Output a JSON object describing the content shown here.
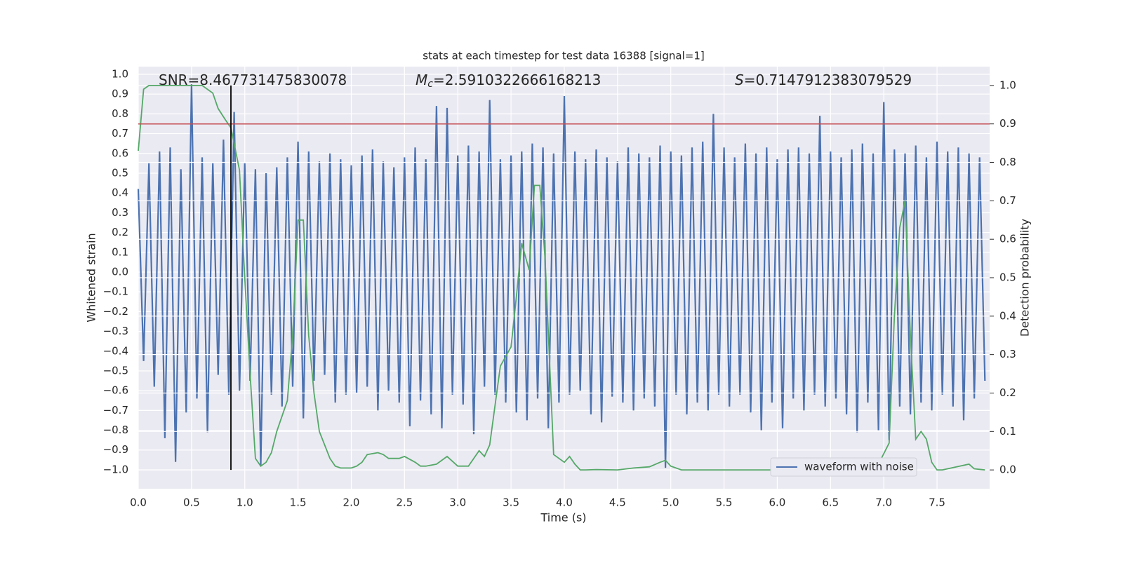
{
  "chart_data": {
    "type": "line",
    "title": "stats at each timestep for test data 16388 [signal=1]",
    "xlabel": "Time (s)",
    "ylabel": "Whitened strain",
    "y2label": "Detection probability",
    "xlim": [
      0,
      7.994
    ],
    "ylim": [
      -1.096,
      1.039
    ],
    "y2lim": [
      -0.049,
      1.049
    ],
    "xticks": [
      {
        "value": 0,
        "label": "0.0"
      },
      {
        "value": 0.5,
        "label": "0.5"
      },
      {
        "value": 1,
        "label": "1.0"
      },
      {
        "value": 1.5,
        "label": "1.5"
      },
      {
        "value": 2,
        "label": "2.0"
      },
      {
        "value": 2.5,
        "label": "2.5"
      },
      {
        "value": 3,
        "label": "3.0"
      },
      {
        "value": 3.5,
        "label": "3.5"
      },
      {
        "value": 4,
        "label": "4.0"
      },
      {
        "value": 4.5,
        "label": "4.5"
      },
      {
        "value": 5,
        "label": "5.0"
      },
      {
        "value": 5.5,
        "label": "5.5"
      },
      {
        "value": 6,
        "label": "6.0"
      },
      {
        "value": 6.5,
        "label": "6.5"
      },
      {
        "value": 7,
        "label": "7.0"
      },
      {
        "value": 7.5,
        "label": "7.5"
      }
    ],
    "yticks": [
      {
        "value": -1,
        "label": "−1.0"
      },
      {
        "value": -0.9,
        "label": "−0.9"
      },
      {
        "value": -0.8,
        "label": "−0.8"
      },
      {
        "value": -0.7,
        "label": "−0.7"
      },
      {
        "value": -0.6,
        "label": "−0.6"
      },
      {
        "value": -0.5,
        "label": "−0.5"
      },
      {
        "value": -0.4,
        "label": "−0.4"
      },
      {
        "value": -0.3,
        "label": "−0.3"
      },
      {
        "value": -0.2,
        "label": "−0.2"
      },
      {
        "value": -0.1,
        "label": "−0.1"
      },
      {
        "value": 0,
        "label": "0.0"
      },
      {
        "value": 0.1,
        "label": "0.1"
      },
      {
        "value": 0.2,
        "label": "0.2"
      },
      {
        "value": 0.3,
        "label": "0.3"
      },
      {
        "value": 0.4,
        "label": "0.4"
      },
      {
        "value": 0.5,
        "label": "0.5"
      },
      {
        "value": 0.6,
        "label": "0.6"
      },
      {
        "value": 0.7,
        "label": "0.7"
      },
      {
        "value": 0.8,
        "label": "0.8"
      },
      {
        "value": 0.9,
        "label": "0.9"
      },
      {
        "value": 1,
        "label": "1.0"
      }
    ],
    "y2ticks": [
      {
        "value": 0,
        "label": "0.0"
      },
      {
        "value": 0.1,
        "label": "0.1"
      },
      {
        "value": 0.2,
        "label": "0.2"
      },
      {
        "value": 0.3,
        "label": "0.3"
      },
      {
        "value": 0.4,
        "label": "0.4"
      },
      {
        "value": 0.5,
        "label": "0.5"
      },
      {
        "value": 0.6,
        "label": "0.6"
      },
      {
        "value": 0.7,
        "label": "0.7"
      },
      {
        "value": 0.8,
        "label": "0.8"
      },
      {
        "value": 0.9,
        "label": "0.9"
      },
      {
        "value": 1,
        "label": "1.0"
      }
    ],
    "grid": true,
    "legend": "lower right",
    "series": [
      {
        "name": "waveform with noise",
        "color": "#4c72b0",
        "axis": "y",
        "x": [
          0,
          0.05,
          0.1,
          0.15,
          0.2,
          0.25,
          0.3,
          0.35,
          0.4,
          0.45,
          0.5,
          0.55,
          0.6,
          0.65,
          0.7,
          0.75,
          0.8,
          0.85,
          0.9,
          0.95,
          1,
          1.05,
          1.1,
          1.15,
          1.2,
          1.25,
          1.3,
          1.35,
          1.4,
          1.45,
          1.5,
          1.55,
          1.6,
          1.65,
          1.7,
          1.75,
          1.8,
          1.85,
          1.9,
          1.95,
          2,
          2.05,
          2.1,
          2.15,
          2.2,
          2.25,
          2.3,
          2.35,
          2.4,
          2.45,
          2.5,
          2.55,
          2.6,
          2.65,
          2.7,
          2.75,
          2.8,
          2.85,
          2.9,
          2.95,
          3,
          3.05,
          3.1,
          3.15,
          3.2,
          3.25,
          3.3,
          3.35,
          3.4,
          3.45,
          3.5,
          3.55,
          3.6,
          3.65,
          3.7,
          3.75,
          3.8,
          3.85,
          3.9,
          3.95,
          4,
          4.05,
          4.1,
          4.15,
          4.2,
          4.25,
          4.3,
          4.35,
          4.4,
          4.45,
          4.5,
          4.55,
          4.6,
          4.65,
          4.7,
          4.75,
          4.8,
          4.85,
          4.9,
          4.95,
          5,
          5.05,
          5.1,
          5.15,
          5.2,
          5.25,
          5.3,
          5.35,
          5.4,
          5.45,
          5.5,
          5.55,
          5.6,
          5.65,
          5.7,
          5.75,
          5.8,
          5.85,
          5.9,
          5.95,
          6,
          6.05,
          6.1,
          6.15,
          6.2,
          6.25,
          6.3,
          6.35,
          6.4,
          6.45,
          6.5,
          6.55,
          6.6,
          6.65,
          6.7,
          6.75,
          6.8,
          6.85,
          6.9,
          6.95,
          7,
          7.05,
          7.1,
          7.15,
          7.2,
          7.25,
          7.3,
          7.35,
          7.4,
          7.45,
          7.5,
          7.55,
          7.6,
          7.65,
          7.7,
          7.75,
          7.8,
          7.85,
          7.9,
          7.95
        ],
        "values": [
          0.42,
          -0.45,
          0.55,
          -0.58,
          0.61,
          -0.84,
          0.63,
          -0.96,
          0.52,
          -0.71,
          0.95,
          -0.64,
          0.58,
          -0.81,
          0.55,
          -0.52,
          0.67,
          -0.62,
          0.81,
          -0.6,
          0.55,
          -0.55,
          0.52,
          -0.98,
          0.5,
          -0.62,
          0.53,
          -0.68,
          0.58,
          -0.58,
          0.66,
          -0.74,
          0.61,
          -0.55,
          0.56,
          -0.52,
          0.6,
          -0.66,
          0.57,
          -0.62,
          0.54,
          -0.61,
          0.59,
          -0.58,
          0.62,
          -0.7,
          0.56,
          -0.6,
          0.53,
          -0.66,
          0.58,
          -0.78,
          0.63,
          -0.65,
          0.57,
          -0.72,
          0.84,
          -0.79,
          0.83,
          -0.62,
          0.59,
          -0.67,
          0.64,
          -0.82,
          0.61,
          -0.58,
          0.87,
          -0.62,
          0.57,
          -0.66,
          0.59,
          -0.71,
          0.61,
          -0.75,
          0.65,
          -0.64,
          0.63,
          -0.79,
          0.6,
          -0.66,
          0.89,
          -0.62,
          0.61,
          -0.6,
          0.57,
          -0.72,
          0.62,
          -0.76,
          0.58,
          -0.63,
          0.56,
          -0.66,
          0.63,
          -0.7,
          0.6,
          -0.64,
          0.58,
          -0.68,
          0.64,
          -0.99,
          0.61,
          -0.62,
          0.59,
          -0.72,
          0.63,
          -0.66,
          0.66,
          -0.7,
          0.8,
          -0.62,
          0.63,
          -0.68,
          0.58,
          -0.62,
          0.65,
          -0.71,
          0.6,
          -0.8,
          0.63,
          -0.66,
          0.57,
          -0.79,
          0.62,
          -0.64,
          0.63,
          -0.7,
          0.6,
          -0.62,
          0.79,
          -0.68,
          0.61,
          -0.64,
          0.58,
          -0.72,
          0.62,
          -0.81,
          0.65,
          -0.66,
          0.6,
          -0.8,
          0.86,
          -0.85,
          0.62,
          -0.68,
          0.6,
          -0.72,
          0.64,
          -0.66,
          0.58,
          -0.7,
          0.66,
          -0.62,
          0.61,
          -0.68,
          0.63,
          -0.75,
          0.6,
          -0.64,
          0.58,
          -0.55
        ]
      },
      {
        "color": "#55a868",
        "axis": "y2",
        "x": [
          0,
          0.05,
          0.1,
          0.2,
          0.3,
          0.4,
          0.5,
          0.6,
          0.7,
          0.75,
          0.82,
          0.87,
          0.95,
          1,
          1.05,
          1.1,
          1.15,
          1.2,
          1.25,
          1.3,
          1.4,
          1.45,
          1.5,
          1.55,
          1.6,
          1.65,
          1.7,
          1.8,
          1.85,
          1.9,
          2,
          2.05,
          2.1,
          2.15,
          2.25,
          2.3,
          2.35,
          2.45,
          2.5,
          2.6,
          2.65,
          2.7,
          2.8,
          2.9,
          3,
          3.1,
          3.2,
          3.25,
          3.3,
          3.4,
          3.5,
          3.55,
          3.6,
          3.67,
          3.72,
          3.77,
          3.82,
          3.9,
          4,
          4.05,
          4.1,
          4.15,
          4.2,
          4.3,
          4.5,
          4.65,
          4.8,
          4.9,
          4.95,
          5,
          5.1,
          5.5,
          6,
          6.2,
          6.3,
          6.5,
          6.7,
          6.75,
          6.85,
          6.95,
          7.05,
          7.1,
          7.15,
          7.2,
          7.25,
          7.3,
          7.35,
          7.4,
          7.45,
          7.5,
          7.55,
          7.8,
          7.85,
          7.95
        ],
        "values": [
          0.83,
          0.99,
          1,
          1,
          1,
          1,
          1,
          1,
          0.98,
          0.94,
          0.91,
          0.89,
          0.78,
          0.5,
          0.25,
          0.03,
          0.01,
          0.02,
          0.045,
          0.1,
          0.18,
          0.35,
          0.65,
          0.65,
          0.35,
          0.2,
          0.1,
          0.03,
          0.01,
          0.005,
          0.005,
          0.01,
          0.02,
          0.04,
          0.045,
          0.04,
          0.03,
          0.03,
          0.035,
          0.02,
          0.01,
          0.01,
          0.015,
          0.035,
          0.01,
          0.01,
          0.05,
          0.035,
          0.065,
          0.27,
          0.32,
          0.45,
          0.59,
          0.52,
          0.74,
          0.74,
          0.55,
          0.04,
          0.02,
          0.035,
          0.015,
          0,
          0,
          0.001,
          0,
          0.005,
          0.008,
          0.02,
          0.025,
          0.01,
          0,
          0,
          0,
          0.005,
          0.002,
          0.002,
          0.01,
          0.005,
          0.005,
          0.015,
          0.07,
          0.4,
          0.63,
          0.7,
          0.35,
          0.08,
          0.1,
          0.08,
          0.02,
          0,
          0,
          0.015,
          0.003,
          0
        ]
      }
    ],
    "hlines": [
      {
        "value": 0.9,
        "axis": "y2",
        "color": "#c44e52"
      }
    ],
    "vlines": [
      {
        "value": 0.87,
        "axis": "y2",
        "from": 0,
        "to": 1,
        "color": "#000000"
      }
    ],
    "annotations": [
      {
        "text": "SNR=8.467731475830078"
      },
      {
        "symbol": "M",
        "subscript": "c",
        "text": "=2.5910322666168213"
      },
      {
        "symbol": "S",
        "text": "=0.7147912383079529"
      }
    ]
  }
}
